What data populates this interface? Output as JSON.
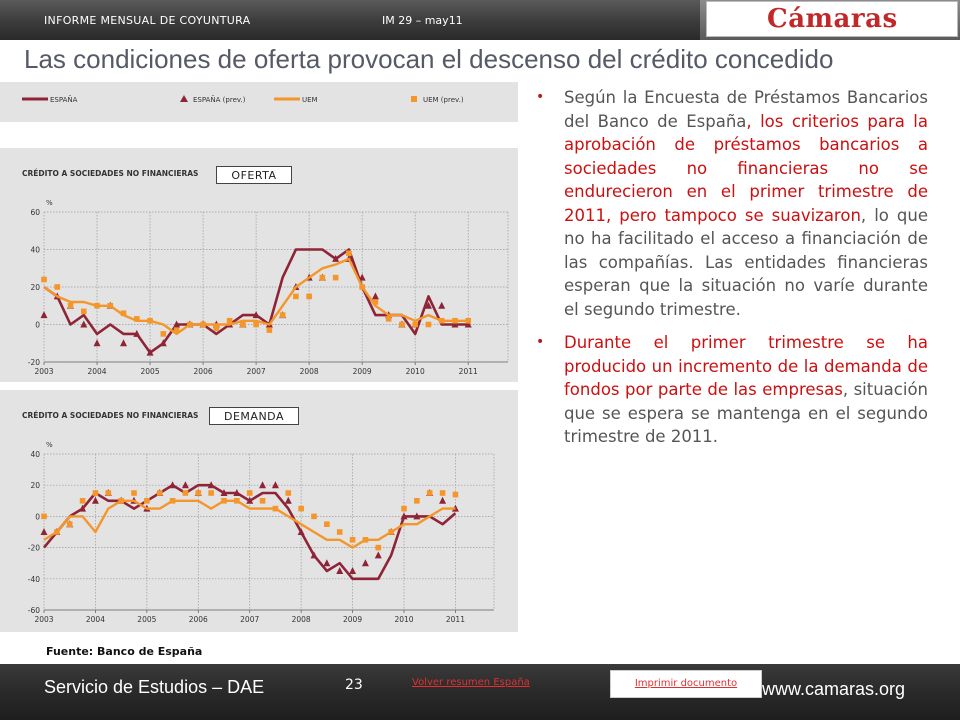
{
  "header": {
    "left": "INFORME MENSUAL DE COYUNTURA",
    "mid": "IM 29 – may11",
    "logo": "Cámaras",
    "title": "Las condiciones de oferta provocan el descenso del crédito concedido"
  },
  "legend": {
    "items": [
      "ESPAÑA",
      "ESPAÑA (prev.)",
      "UEM",
      "UEM (prev.)"
    ]
  },
  "colors": {
    "spain": "#8e2436",
    "uem": "#f5962b",
    "grid": "#9a9a9a"
  },
  "charts": [
    {
      "label": "OFERTA"
    },
    {
      "label": "DEMANDA"
    }
  ],
  "chart_data": [
    {
      "type": "line",
      "title": "CRÉDITO A SOCIEDADES NO FINANCIERAS",
      "ylabel": "%",
      "ylim": [
        -20,
        60
      ],
      "yticks": [
        -20,
        0,
        20,
        40,
        60
      ],
      "xlim": [
        2003,
        2011.75
      ],
      "xticks": [
        "2003",
        "2004",
        "2005",
        "2006",
        "2007",
        "2008",
        "2009",
        "2010",
        "2011"
      ],
      "grid": true,
      "x": [
        2003.0,
        2003.25,
        2003.5,
        2003.75,
        2004.0,
        2004.25,
        2004.5,
        2004.75,
        2005.0,
        2005.25,
        2005.5,
        2005.75,
        2006.0,
        2006.25,
        2006.5,
        2006.75,
        2007.0,
        2007.25,
        2007.5,
        2007.75,
        2008.0,
        2008.25,
        2008.5,
        2008.75,
        2009.0,
        2009.25,
        2009.5,
        2009.75,
        2010.0,
        2010.25,
        2010.5,
        2010.75,
        2011.0
      ],
      "series": [
        {
          "name": "ESPAÑA",
          "style": "line",
          "values": [
            20,
            15,
            0,
            5,
            -5,
            0,
            -5,
            -5,
            -15,
            -10,
            0,
            0,
            0,
            -5,
            0,
            5,
            5,
            0,
            25,
            40,
            40,
            40,
            35,
            40,
            20,
            5,
            5,
            5,
            -5,
            15,
            0,
            0,
            0
          ]
        },
        {
          "name": "ESPAÑA (prev.)",
          "style": "triangle",
          "values": [
            5,
            15,
            10,
            0,
            -10,
            10,
            -10,
            -5,
            -15,
            -10,
            0,
            0,
            0,
            0,
            0,
            0,
            5,
            0,
            5,
            20,
            25,
            25,
            35,
            35,
            25,
            15,
            5,
            0,
            0,
            10,
            10,
            0,
            0
          ]
        },
        {
          "name": "UEM",
          "style": "line",
          "values": [
            20,
            15,
            12,
            12,
            10,
            10,
            5,
            2,
            2,
            0,
            -5,
            0,
            0,
            0,
            0,
            2,
            2,
            0,
            10,
            20,
            25,
            30,
            32,
            35,
            20,
            10,
            5,
            5,
            2,
            5,
            2,
            2,
            2
          ]
        },
        {
          "name": "UEM (prev.)",
          "style": "square",
          "values": [
            24,
            20,
            10,
            7,
            10,
            10,
            6,
            3,
            2,
            -5,
            -3,
            0,
            0,
            -2,
            2,
            0,
            0,
            -3,
            5,
            15,
            15,
            25,
            25,
            38,
            20,
            12,
            3,
            0,
            0,
            0,
            2,
            2,
            2
          ]
        }
      ]
    },
    {
      "type": "line",
      "title": "CRÉDITO A SOCIEDADES NO FINANCIERAS",
      "ylabel": "%",
      "ylim": [
        -60,
        40
      ],
      "yticks": [
        -60,
        -40,
        -20,
        0,
        20,
        40
      ],
      "xlim": [
        2003,
        2011.75
      ],
      "xticks": [
        "2003",
        "2004",
        "2005",
        "2006",
        "2007",
        "2008",
        "2009",
        "2010",
        "2011"
      ],
      "grid": true,
      "x": [
        2003.0,
        2003.25,
        2003.5,
        2003.75,
        2004.0,
        2004.25,
        2004.5,
        2004.75,
        2005.0,
        2005.25,
        2005.5,
        2005.75,
        2006.0,
        2006.25,
        2006.5,
        2006.75,
        2007.0,
        2007.25,
        2007.5,
        2007.75,
        2008.0,
        2008.25,
        2008.5,
        2008.75,
        2009.0,
        2009.25,
        2009.5,
        2009.75,
        2010.0,
        2010.25,
        2010.5,
        2010.75,
        2011.0
      ],
      "series": [
        {
          "name": "ESPAÑA",
          "style": "line",
          "values": [
            -20,
            -10,
            0,
            5,
            15,
            10,
            10,
            5,
            10,
            15,
            20,
            15,
            20,
            20,
            15,
            15,
            10,
            15,
            15,
            5,
            -10,
            -25,
            -35,
            -30,
            -40,
            -40,
            -40,
            -25,
            0,
            0,
            0,
            -5,
            2
          ]
        },
        {
          "name": "ESPAÑA (prev.)",
          "style": "triangle",
          "values": [
            -10,
            -10,
            -5,
            5,
            10,
            15,
            10,
            10,
            5,
            15,
            20,
            20,
            15,
            20,
            15,
            15,
            10,
            20,
            20,
            10,
            -10,
            -25,
            -30,
            -35,
            -35,
            -30,
            -25,
            -10,
            0,
            0,
            15,
            10,
            5
          ]
        },
        {
          "name": "UEM",
          "style": "line",
          "values": [
            -15,
            -10,
            0,
            0,
            -10,
            5,
            10,
            10,
            5,
            5,
            10,
            10,
            10,
            5,
            10,
            10,
            5,
            5,
            5,
            0,
            -5,
            -10,
            -15,
            -15,
            -20,
            -15,
            -15,
            -10,
            -5,
            -5,
            0,
            5,
            5
          ]
        },
        {
          "name": "UEM (prev.)",
          "style": "square",
          "values": [
            0,
            -10,
            -5,
            10,
            15,
            15,
            10,
            15,
            10,
            15,
            10,
            15,
            15,
            15,
            10,
            10,
            15,
            10,
            5,
            15,
            5,
            0,
            -5,
            -10,
            -15,
            -15,
            -20,
            -10,
            5,
            10,
            15,
            15,
            14
          ]
        }
      ]
    }
  ],
  "source": "Fuente: Banco de España",
  "bullets": [
    {
      "segments": [
        {
          "text": "Según la Encuesta de Préstamos Bancarios del Banco de España",
          "red": false
        },
        {
          "text": ", los criterios para la aprobación de préstamos bancarios a sociedades no financieras no se endurecieron en el primer trimestre de 2011, pero tampoco se suavizaron",
          "red": true
        },
        {
          "text": ", lo que no ha facilitado el acceso a financiación de las compañías. Las entidades financieras esperan que la situación no varíe durante el segundo trimestre.",
          "red": false
        }
      ]
    },
    {
      "segments": [
        {
          "text": "Durante el primer trimestre se ha producido un incremento de la demanda de fondos por parte de las empresas",
          "red": true
        },
        {
          "text": ", situación que se espera se mantenga en el segundo trimestre de 2011.",
          "red": false
        }
      ]
    }
  ],
  "footer": {
    "left": "Servicio de Estudios – DAE",
    "page": "23",
    "link": "Volver resumen España",
    "print": "Imprimir documento",
    "url": "www.camaras.org"
  }
}
